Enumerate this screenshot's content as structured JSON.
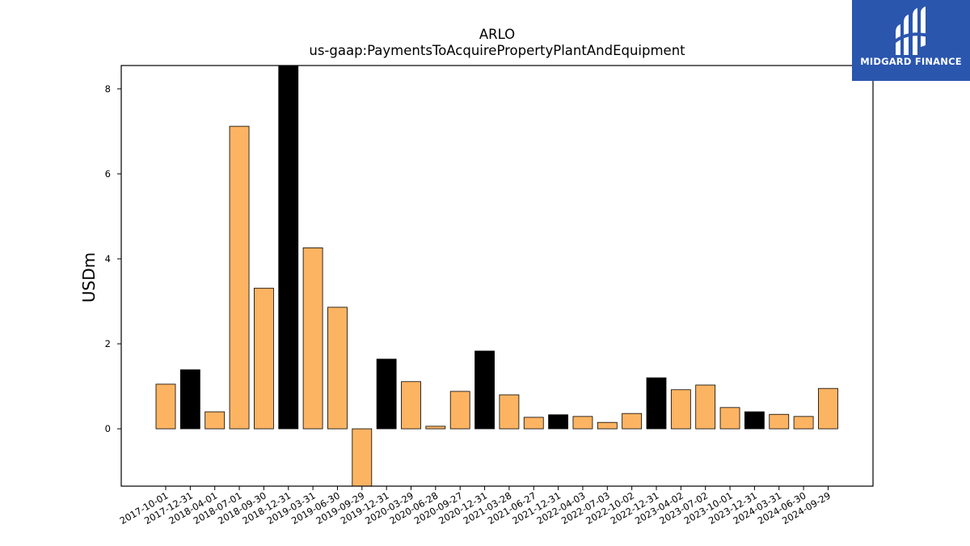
{
  "chart_data": {
    "type": "bar",
    "title": "ARLO",
    "subtitle": "us-gaap:PaymentsToAcquirePropertyPlantAndEquipment",
    "xlabel": "",
    "ylabel": "USDm",
    "ylim": [
      -1.35,
      8.55
    ],
    "yticks": [
      0,
      2,
      4,
      6,
      8
    ],
    "grid": false,
    "categories": [
      "2017-10-01",
      "2017-12-31",
      "2018-04-01",
      "2018-07-01",
      "2018-09-30",
      "2018-12-31",
      "2019-03-31",
      "2019-06-30",
      "2019-09-29",
      "2019-12-31",
      "2020-03-29",
      "2020-06-28",
      "2020-09-27",
      "2020-12-31",
      "2021-03-28",
      "2021-06-27",
      "2021-12-31",
      "2022-04-03",
      "2022-07-03",
      "2022-10-02",
      "2022-12-31",
      "2023-04-02",
      "2023-07-02",
      "2023-10-01",
      "2023-12-31",
      "2024-03-31",
      "2024-06-30",
      "2024-09-29"
    ],
    "values": [
      1.05,
      1.39,
      0.4,
      7.12,
      3.31,
      8.8,
      4.26,
      2.86,
      -1.5,
      1.64,
      1.11,
      0.06,
      0.88,
      1.83,
      0.8,
      0.27,
      0.33,
      0.29,
      0.15,
      0.36,
      1.2,
      0.92,
      1.03,
      0.5,
      0.4,
      0.34,
      0.29,
      0.95
    ],
    "fiscal_year_end": [
      false,
      true,
      false,
      false,
      false,
      true,
      false,
      false,
      false,
      true,
      false,
      false,
      false,
      true,
      false,
      false,
      true,
      false,
      false,
      false,
      true,
      false,
      false,
      false,
      true,
      false,
      false,
      false
    ],
    "colors": {
      "quarter": "#fdb462",
      "year_end": "#000000",
      "edge": "#000000"
    }
  },
  "logo": {
    "text": "MIDGARD FINANCE",
    "background": "#2a56ae"
  }
}
